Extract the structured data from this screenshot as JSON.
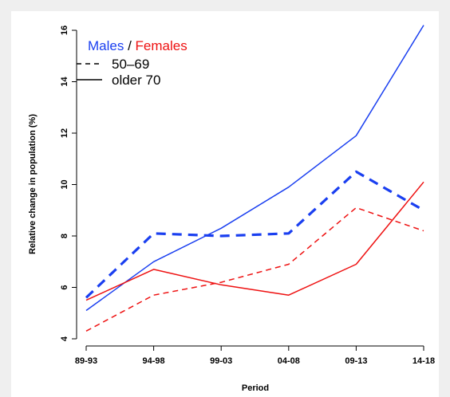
{
  "chart_data": {
    "type": "line",
    "categories": [
      "89-93",
      "94-98",
      "99-03",
      "04-08",
      "09-13",
      "14-18"
    ],
    "xlabel": "Period",
    "ylabel": "Relative change in population (%)",
    "ylim": [
      4,
      16
    ],
    "yticks": [
      4,
      6,
      8,
      10,
      12,
      14,
      16
    ],
    "grid": false,
    "legend_position": "top-left",
    "legend": {
      "males_label": "Males",
      "separator": " / ",
      "females_label": "Females",
      "dashed_label": "50–69",
      "solid_label": "older 70"
    },
    "colors": {
      "males": "#1a3ff0",
      "females": "#ee1111"
    },
    "series": [
      {
        "group": "males",
        "age": "50–69",
        "style": "dashed-thick",
        "values": [
          5.6,
          8.1,
          8.0,
          8.1,
          10.5,
          9.0
        ]
      },
      {
        "group": "males",
        "age": "older 70",
        "style": "solid",
        "values": [
          5.1,
          7.0,
          8.3,
          9.9,
          11.9,
          16.2
        ]
      },
      {
        "group": "females",
        "age": "50–69",
        "style": "dashed",
        "values": [
          4.3,
          5.7,
          6.2,
          6.9,
          9.1,
          8.2
        ]
      },
      {
        "group": "females",
        "age": "older 70",
        "style": "solid",
        "values": [
          5.5,
          6.7,
          6.1,
          5.7,
          6.9,
          10.1
        ]
      }
    ]
  }
}
